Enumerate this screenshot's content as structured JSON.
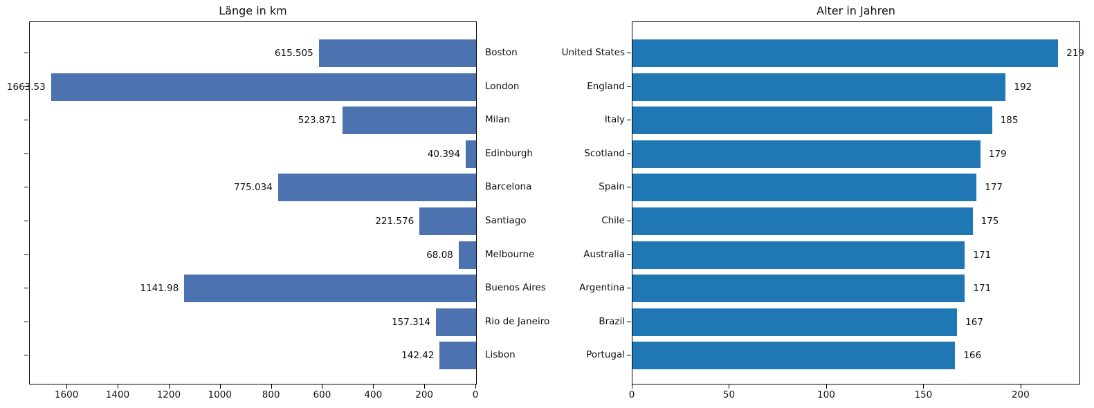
{
  "figure": {
    "background": "#ffffff",
    "text_color": "#111111",
    "spine_color": "#000000"
  },
  "chart_data": [
    {
      "type": "bar",
      "orientation": "horizontal",
      "title": "Länge in km",
      "categories": [
        "Boston",
        "London",
        "Milan",
        "Edinburgh",
        "Barcelona",
        "Santiago",
        "Melbourne",
        "Buenos Aires",
        "Rio de Janeiro",
        "Lisbon"
      ],
      "values": [
        615.505,
        1663.53,
        523.871,
        40.394,
        775.034,
        221.576,
        68.08,
        1141.98,
        157.314,
        142.42
      ],
      "value_labels": [
        "615.505",
        "1663.53",
        "523.871",
        "40.394",
        "775.034",
        "221.576",
        "68.08",
        "1141.98",
        "157.314",
        "142.42"
      ],
      "bar_color": "#4C72B0",
      "x_axis": {
        "reversed": true,
        "min": 0,
        "max": 1746.7,
        "ticks": [
          1600,
          1400,
          1200,
          1000,
          800,
          600,
          400,
          200,
          0
        ]
      },
      "grid": false,
      "legend": null,
      "category_side": "right",
      "value_label_side": "left"
    },
    {
      "type": "bar",
      "orientation": "horizontal",
      "title": "Alter in Jahren",
      "categories": [
        "United States",
        "England",
        "Italy",
        "Scotland",
        "Spain",
        "Chile",
        "Australia",
        "Argentina",
        "Brazil",
        "Portugal"
      ],
      "values": [
        219,
        192,
        185,
        179,
        177,
        175,
        171,
        171,
        167,
        166
      ],
      "value_labels": [
        "219",
        "192",
        "185",
        "179",
        "177",
        "175",
        "171",
        "171",
        "167",
        "166"
      ],
      "bar_color": "#1F77B4",
      "x_axis": {
        "reversed": false,
        "min": 0,
        "max": 229.95,
        "ticks": [
          0,
          50,
          100,
          150,
          200
        ]
      },
      "grid": false,
      "legend": null,
      "category_side": "left",
      "value_label_side": "right"
    }
  ]
}
